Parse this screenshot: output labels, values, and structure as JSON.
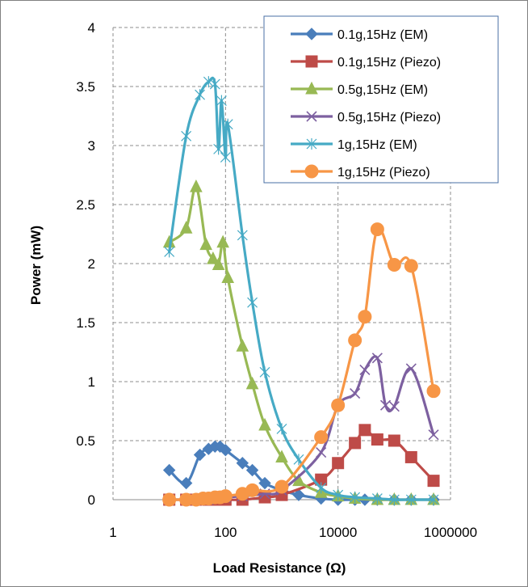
{
  "chart_data": {
    "type": "line",
    "xlabel": "Load Resistance (Ω)",
    "ylabel": "Power (mW)",
    "xscale": "log",
    "xlim": [
      1,
      1000000
    ],
    "ylim": [
      0,
      4
    ],
    "x_ticks": [
      "1",
      "100",
      "10000",
      "1000000"
    ],
    "y_ticks": [
      "0",
      "0.5",
      "1",
      "1.5",
      "2",
      "2.5",
      "3",
      "3.5",
      "4"
    ],
    "grid": "major gridlines, dashed",
    "legend": "top-right",
    "series": [
      {
        "name": "0.1g,15Hz (EM)",
        "color": "#4a7ebb",
        "marker": "diamond",
        "x": [
          10,
          20,
          35,
          50,
          65,
          80,
          100,
          200,
          300,
          500,
          1000,
          2000,
          5000,
          10000,
          20000,
          30000,
          50000,
          100000,
          200000,
          500000
        ],
        "y": [
          0.25,
          0.14,
          0.38,
          0.43,
          0.45,
          0.45,
          0.42,
          0.31,
          0.25,
          0.14,
          0.08,
          0.04,
          0.01,
          0.0,
          0.0,
          0.0,
          0.0,
          0.0,
          0.0,
          0.0
        ]
      },
      {
        "name": "0.1g,15Hz (Piezo)",
        "color": "#be4b48",
        "marker": "square",
        "x": [
          10,
          20,
          30,
          50,
          65,
          80,
          100,
          200,
          500,
          1000,
          5000,
          10000,
          20000,
          30000,
          50000,
          100000,
          200000,
          500000
        ],
        "y": [
          0.0,
          0.0,
          0.0,
          0.0,
          0.0,
          0.0,
          0.0,
          0.0,
          0.02,
          0.04,
          0.17,
          0.31,
          0.48,
          0.59,
          0.51,
          0.5,
          0.36,
          0.16
        ]
      },
      {
        "name": "0.5g,15Hz (EM)",
        "color": "#98b954",
        "marker": "triangle",
        "x": [
          10,
          20,
          30,
          45,
          60,
          75,
          90,
          110,
          200,
          300,
          500,
          1000,
          2000,
          5000,
          10000,
          20000,
          50000,
          100000,
          200000,
          500000
        ],
        "y": [
          2.18,
          2.3,
          2.65,
          2.16,
          2.04,
          1.99,
          2.18,
          1.88,
          1.3,
          0.98,
          0.63,
          0.36,
          0.16,
          0.06,
          0.03,
          0.01,
          0.0,
          0.0,
          0.0,
          0.0
        ]
      },
      {
        "name": "0.5g,15Hz (Piezo)",
        "color": "#7d60a0",
        "marker": "x",
        "x": [
          10,
          30,
          50,
          70,
          100,
          200,
          500,
          1000,
          5000,
          10000,
          20000,
          30000,
          50000,
          70000,
          100000,
          200000,
          500000
        ],
        "y": [
          0.0,
          0.0,
          0.0,
          0.01,
          0.02,
          0.03,
          0.05,
          0.08,
          0.4,
          0.8,
          0.9,
          1.1,
          1.2,
          0.8,
          0.79,
          1.11,
          0.55
        ]
      },
      {
        "name": "1g,15Hz (EM)",
        "color": "#46aac5",
        "marker": "asterisk",
        "x": [
          10,
          20,
          35,
          50,
          65,
          75,
          85,
          100,
          110,
          200,
          300,
          500,
          1000,
          2000,
          5000,
          10000,
          20000,
          50000,
          100000,
          200000,
          500000
        ],
        "y": [
          2.1,
          3.08,
          3.43,
          3.54,
          3.52,
          2.97,
          3.38,
          2.9,
          3.18,
          2.24,
          1.67,
          1.08,
          0.6,
          0.34,
          0.1,
          0.04,
          0.02,
          0.01,
          0.0,
          0.0,
          0.0
        ]
      },
      {
        "name": "1g,15Hz (Piezo)",
        "color": "#f79646",
        "marker": "circle",
        "x": [
          10,
          20,
          30,
          40,
          50,
          65,
          80,
          100,
          200,
          300,
          1000,
          5000,
          10000,
          20000,
          30000,
          50000,
          100000,
          200000,
          500000
        ],
        "y": [
          0.0,
          0.0,
          0.0,
          0.01,
          0.01,
          0.02,
          0.02,
          0.03,
          0.05,
          0.08,
          0.11,
          0.53,
          0.8,
          1.35,
          1.55,
          2.29,
          1.99,
          1.98,
          0.92
        ]
      }
    ]
  }
}
